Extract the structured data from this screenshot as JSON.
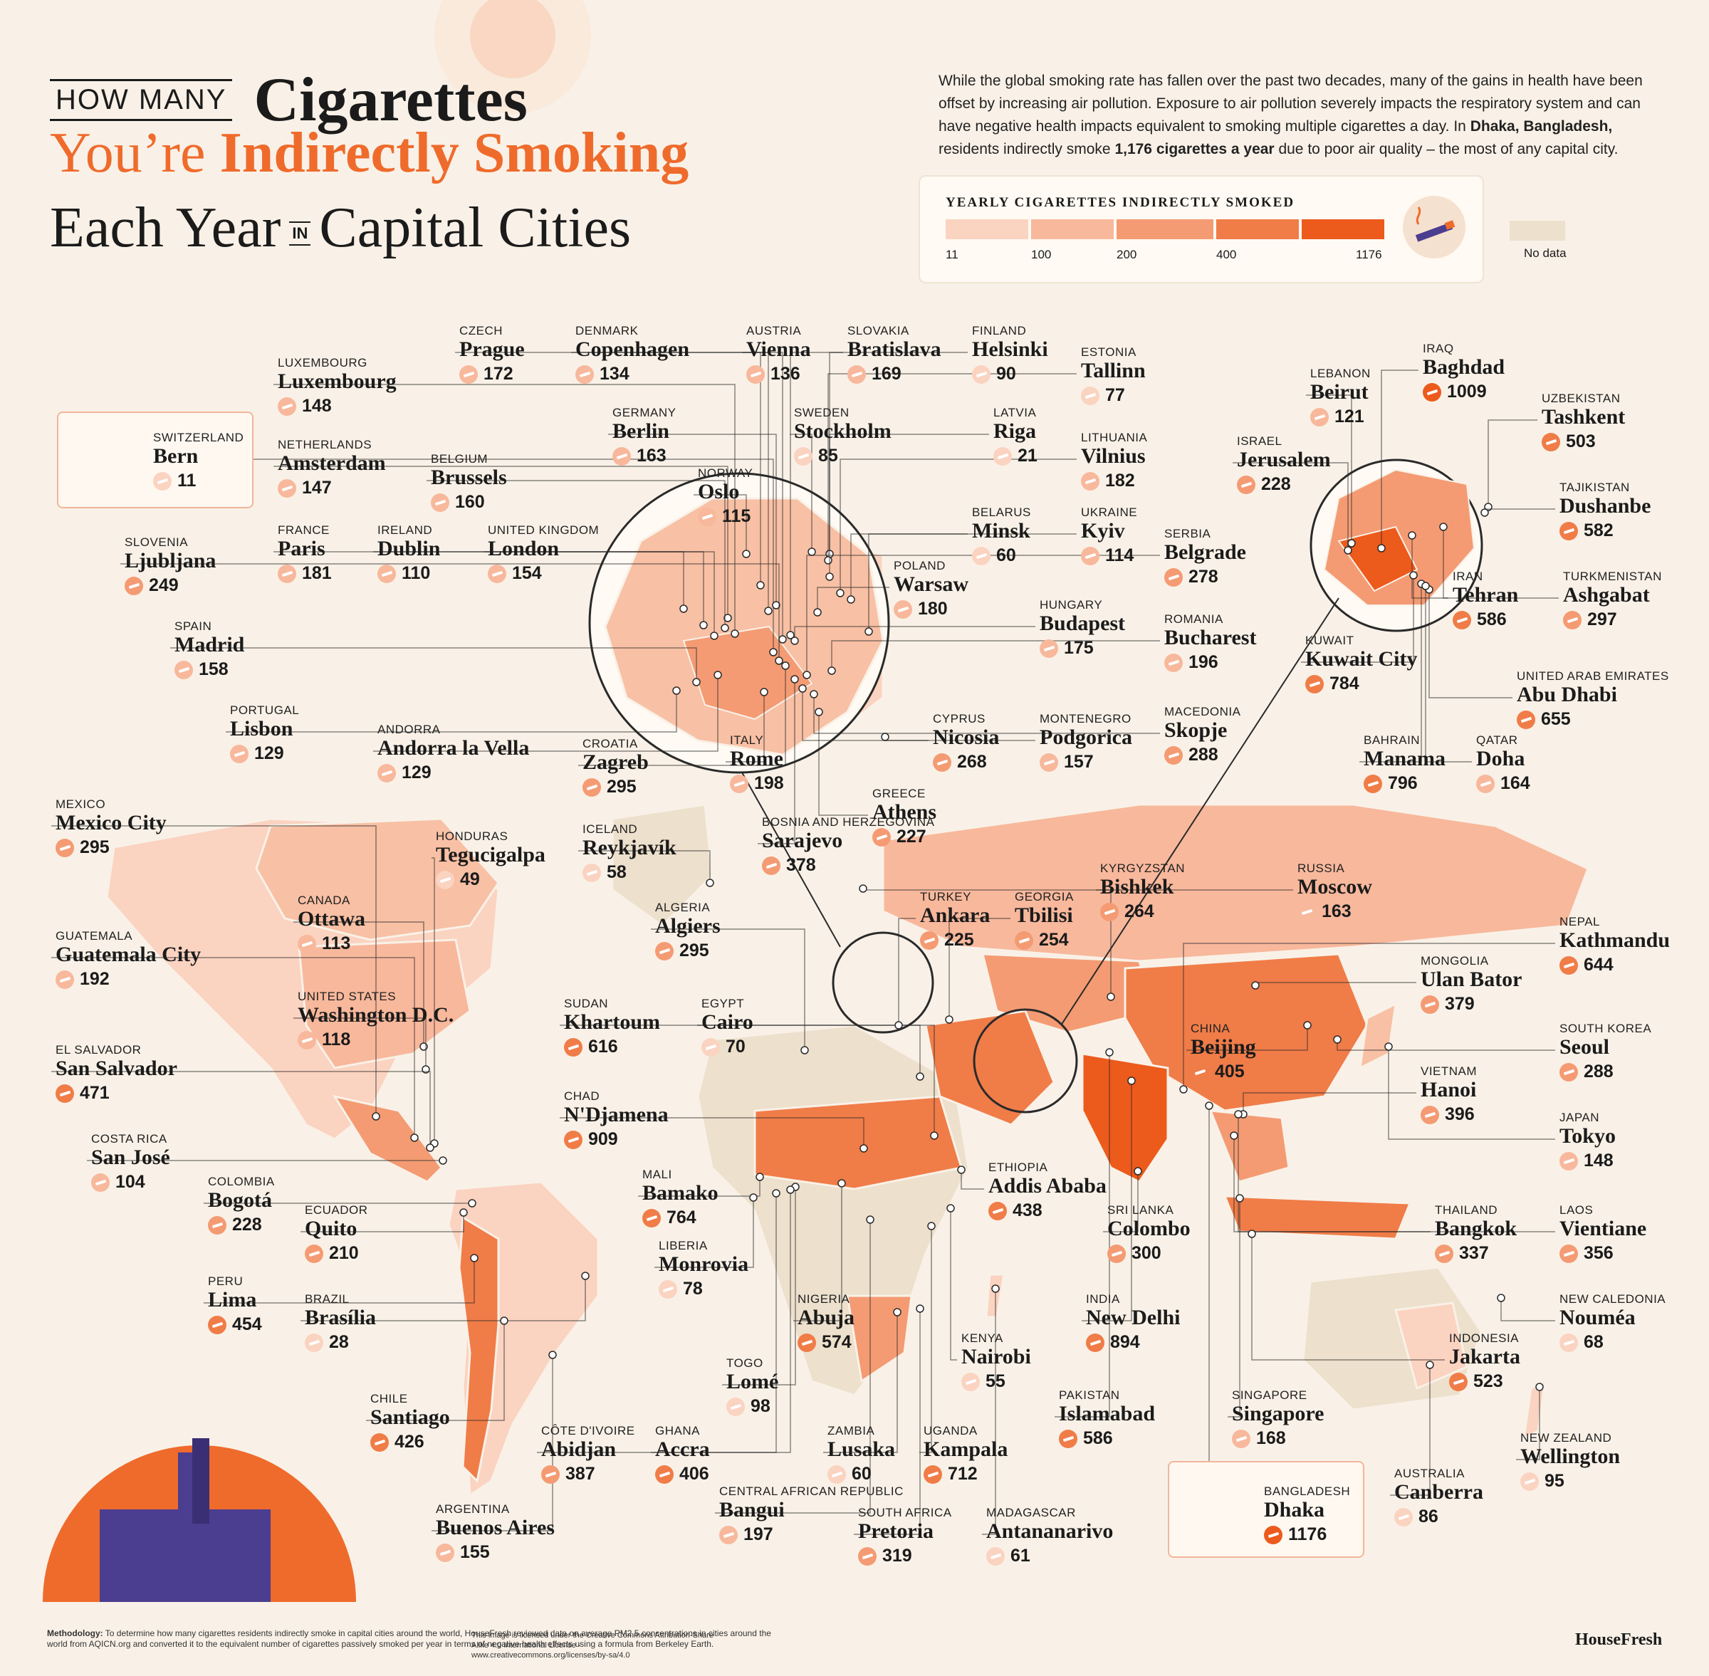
{
  "title": {
    "line1_small": "HOW MANY",
    "line1_big": "Cigarettes",
    "line2_a": "You’re ",
    "line2_b": "Indirectly Smoking",
    "line3_a": "Each Year",
    "line3_in": "IN",
    "line3_b": "Capital Cities"
  },
  "intro": {
    "p1": "While the global smoking rate has fallen over the past two decades, many of the gains in health have been offset by increasing air pollution. Exposure to air pollution severely impacts the respiratory system and can have negative health impacts equivalent to smoking multiple cigarettes a day. In ",
    "city": "Dhaka, Bangladesh,",
    "p2": " residents indirectly smoke ",
    "num": "1,176 cigarettes a year",
    "p3": " due to poor air quality – the most of any capital city."
  },
  "legend": {
    "title": "YEARLY CIGARETTES INDIRECTLY SMOKED",
    "ticks": [
      "11",
      "100",
      "200",
      "400",
      "1176"
    ],
    "colors": [
      "#fbd3c1",
      "#f8b89c",
      "#f49b73",
      "#f07c48",
      "#ec5a1c"
    ],
    "nodata_label": "No data",
    "nodata_color": "#ede0cc",
    "icon": "cigarette-icon"
  },
  "colors": {
    "background": "#f9f1e7",
    "accent": "#ef6b2c",
    "leader": "#2a2a2a",
    "land_nodata": "#ede0cc"
  },
  "cities": [
    {
      "id": "bern",
      "country": "SWITZERLAND",
      "name": "Bern",
      "value": "11",
      "v": 11
    },
    {
      "id": "luxembourg",
      "country": "LUXEMBOURG",
      "name": "Luxembourg",
      "value": "148",
      "v": 148
    },
    {
      "id": "prague",
      "country": "CZECH",
      "name": "Prague",
      "value": "172",
      "v": 172
    },
    {
      "id": "copenhagen",
      "country": "DENMARK",
      "name": "Copenhagen",
      "value": "134",
      "v": 134
    },
    {
      "id": "vienna",
      "country": "AUSTRIA",
      "name": "Vienna",
      "value": "136",
      "v": 136
    },
    {
      "id": "bratislava",
      "country": "SLOVAKIA",
      "name": "Bratislava",
      "value": "169",
      "v": 169
    },
    {
      "id": "helsinki",
      "country": "FINLAND",
      "name": "Helsinki",
      "value": "90",
      "v": 90
    },
    {
      "id": "tallinn",
      "country": "ESTONIA",
      "name": "Tallinn",
      "value": "77",
      "v": 77
    },
    {
      "id": "riga",
      "country": "LATVIA",
      "name": "Riga",
      "value": "21",
      "v": 21
    },
    {
      "id": "vilnius",
      "country": "LITHUANIA",
      "name": "Vilnius",
      "value": "182",
      "v": 182
    },
    {
      "id": "minsk",
      "country": "BELARUS",
      "name": "Minsk",
      "value": "60",
      "v": 60
    },
    {
      "id": "kyiv",
      "country": "UKRAINE",
      "name": "Kyiv",
      "value": "114",
      "v": 114
    },
    {
      "id": "warsaw",
      "country": "POLAND",
      "name": "Warsaw",
      "value": "180",
      "v": 180
    },
    {
      "id": "budapest",
      "country": "HUNGARY",
      "name": "Budapest",
      "value": "175",
      "v": 175
    },
    {
      "id": "amsterdam",
      "country": "NETHERLANDS",
      "name": "Amsterdam",
      "value": "147",
      "v": 147
    },
    {
      "id": "brussels",
      "country": "BELGIUM",
      "name": "Brussels",
      "value": "160",
      "v": 160
    },
    {
      "id": "berlin",
      "country": "GERMANY",
      "name": "Berlin",
      "value": "163",
      "v": 163
    },
    {
      "id": "stockholm",
      "country": "SWEDEN",
      "name": "Stockholm",
      "value": "85",
      "v": 85
    },
    {
      "id": "oslo",
      "country": "NORWAY",
      "name": "Oslo",
      "value": "115",
      "v": 115
    },
    {
      "id": "paris",
      "country": "FRANCE",
      "name": "Paris",
      "value": "181",
      "v": 181
    },
    {
      "id": "dublin",
      "country": "IRELAND",
      "name": "Dublin",
      "value": "110",
      "v": 110
    },
    {
      "id": "london",
      "country": "UNITED KINGDOM",
      "name": "London",
      "value": "154",
      "v": 154
    },
    {
      "id": "ljubljana",
      "country": "SLOVENIA",
      "name": "Ljubljana",
      "value": "249",
      "v": 249
    },
    {
      "id": "madrid",
      "country": "SPAIN",
      "name": "Madrid",
      "value": "158",
      "v": 158
    },
    {
      "id": "lisbon",
      "country": "PORTUGAL",
      "name": "Lisbon",
      "value": "129",
      "v": 129
    },
    {
      "id": "andorra",
      "country": "ANDORRA",
      "name": "Andorra la Vella",
      "value": "129",
      "v": 129
    },
    {
      "id": "zagreb",
      "country": "CROATIA",
      "name": "Zagreb",
      "value": "295",
      "v": 295
    },
    {
      "id": "rome",
      "country": "ITALY",
      "name": "Rome",
      "value": "198",
      "v": 198
    },
    {
      "id": "sarajevo",
      "country": "BOSNIA AND HERZEGOVINA",
      "name": "Sarajevo",
      "value": "378",
      "v": 378
    },
    {
      "id": "athens",
      "country": "GREECE",
      "name": "Athens",
      "value": "227",
      "v": 227
    },
    {
      "id": "nicosia",
      "country": "CYPRUS",
      "name": "Nicosia",
      "value": "268",
      "v": 268
    },
    {
      "id": "podgorica",
      "country": "MONTENEGRO",
      "name": "Podgorica",
      "value": "157",
      "v": 157
    },
    {
      "id": "skopje",
      "country": "MACEDONIA",
      "name": "Skopje",
      "value": "288",
      "v": 288
    },
    {
      "id": "belgrade",
      "country": "SERBIA",
      "name": "Belgrade",
      "value": "278",
      "v": 278
    },
    {
      "id": "bucharest",
      "country": "ROMANIA",
      "name": "Bucharest",
      "value": "196",
      "v": 196
    },
    {
      "id": "reykjavik",
      "country": "ICELAND",
      "name": "Reykjavík",
      "value": "58",
      "v": 58
    },
    {
      "id": "mexico",
      "country": "MEXICO",
      "name": "Mexico City",
      "value": "295",
      "v": 295
    },
    {
      "id": "tegucigalpa",
      "country": "HONDURAS",
      "name": "Tegucigalpa",
      "value": "49",
      "v": 49
    },
    {
      "id": "ottawa",
      "country": "CANADA",
      "name": "Ottawa",
      "value": "113",
      "v": 113
    },
    {
      "id": "guatemala",
      "country": "GUATEMALA",
      "name": "Guatemala City",
      "value": "192",
      "v": 192
    },
    {
      "id": "washington",
      "country": "UNITED STATES",
      "name": "Washington D.C.",
      "value": "118",
      "v": 118
    },
    {
      "id": "sansalvador",
      "country": "EL SALVADOR",
      "name": "San Salvador",
      "value": "471",
      "v": 471
    },
    {
      "id": "sanjose",
      "country": "COSTA RICA",
      "name": "San José",
      "value": "104",
      "v": 104
    },
    {
      "id": "bogota",
      "country": "COLOMBIA",
      "name": "Bogotá",
      "value": "228",
      "v": 228
    },
    {
      "id": "quito",
      "country": "ECUADOR",
      "name": "Quito",
      "value": "210",
      "v": 210
    },
    {
      "id": "lima",
      "country": "PERU",
      "name": "Lima",
      "value": "454",
      "v": 454
    },
    {
      "id": "brasilia",
      "country": "BRAZIL",
      "name": "Brasília",
      "value": "28",
      "v": 28
    },
    {
      "id": "santiago",
      "country": "CHILE",
      "name": "Santiago",
      "value": "426",
      "v": 426
    },
    {
      "id": "buenosaires",
      "country": "ARGENTINA",
      "name": "Buenos Aires",
      "value": "155",
      "v": 155
    },
    {
      "id": "algiers",
      "country": "ALGERIA",
      "name": "Algiers",
      "value": "295",
      "v": 295
    },
    {
      "id": "khartoum",
      "country": "SUDAN",
      "name": "Khartoum",
      "value": "616",
      "v": 616
    },
    {
      "id": "cairo",
      "country": "EGYPT",
      "name": "Cairo",
      "value": "70",
      "v": 70
    },
    {
      "id": "ndjamena",
      "country": "CHAD",
      "name": "N'Djamena",
      "value": "909",
      "v": 909
    },
    {
      "id": "bamako",
      "country": "MALI",
      "name": "Bamako",
      "value": "764",
      "v": 764
    },
    {
      "id": "monrovia",
      "country": "LIBERIA",
      "name": "Monrovia",
      "value": "78",
      "v": 78
    },
    {
      "id": "abuja",
      "country": "NIGERIA",
      "name": "Abuja",
      "value": "574",
      "v": 574
    },
    {
      "id": "lome",
      "country": "TOGO",
      "name": "Lomé",
      "value": "98",
      "v": 98
    },
    {
      "id": "abidjan",
      "country": "CÔTE D'IVOIRE",
      "name": "Abidjan",
      "value": "387",
      "v": 387
    },
    {
      "id": "accra",
      "country": "GHANA",
      "name": "Accra",
      "value": "406",
      "v": 406
    },
    {
      "id": "bangui",
      "country": "CENTRAL AFRICAN REPUBLIC",
      "name": "Bangui",
      "value": "197",
      "v": 197
    },
    {
      "id": "lusaka",
      "country": "ZAMBIA",
      "name": "Lusaka",
      "value": "60",
      "v": 60
    },
    {
      "id": "pretoria",
      "country": "SOUTH AFRICA",
      "name": "Pretoria",
      "value": "319",
      "v": 319
    },
    {
      "id": "kampala",
      "country": "UGANDA",
      "name": "Kampala",
      "value": "712",
      "v": 712
    },
    {
      "id": "nairobi",
      "country": "KENYA",
      "name": "Nairobi",
      "value": "55",
      "v": 55
    },
    {
      "id": "addis",
      "country": "ETHIOPIA",
      "name": "Addis Ababa",
      "value": "438",
      "v": 438
    },
    {
      "id": "antananarivo",
      "country": "MADAGASCAR",
      "name": "Antananarivo",
      "value": "61",
      "v": 61
    },
    {
      "id": "ankara",
      "country": "TURKEY",
      "name": "Ankara",
      "value": "225",
      "v": 225
    },
    {
      "id": "tbilisi",
      "country": "GEORGIA",
      "name": "Tbilisi",
      "value": "254",
      "v": 254
    },
    {
      "id": "bishkek",
      "country": "KYRGYZSTAN",
      "name": "Bishkek",
      "value": "264",
      "v": 264
    },
    {
      "id": "moscow",
      "country": "RUSSIA",
      "name": "Moscow",
      "value": "163",
      "v": 163
    },
    {
      "id": "kathmandu",
      "country": "NEPAL",
      "name": "Kathmandu",
      "value": "644",
      "v": 644
    },
    {
      "id": "ulanbator",
      "country": "MONGOLIA",
      "name": "Ulan Bator",
      "value": "379",
      "v": 379
    },
    {
      "id": "beijing",
      "country": "CHINA",
      "name": "Beijing",
      "value": "405",
      "v": 405
    },
    {
      "id": "seoul",
      "country": "SOUTH KOREA",
      "name": "Seoul",
      "value": "288",
      "v": 288
    },
    {
      "id": "hanoi",
      "country": "VIETNAM",
      "name": "Hanoi",
      "value": "396",
      "v": 396
    },
    {
      "id": "tokyo",
      "country": "JAPAN",
      "name": "Tokyo",
      "value": "148",
      "v": 148
    },
    {
      "id": "colombo",
      "country": "SRI LANKA",
      "name": "Colombo",
      "value": "300",
      "v": 300
    },
    {
      "id": "bangkok",
      "country": "THAILAND",
      "name": "Bangkok",
      "value": "337",
      "v": 337
    },
    {
      "id": "vientiane",
      "country": "LAOS",
      "name": "Vientiane",
      "value": "356",
      "v": 356
    },
    {
      "id": "newdelhi",
      "country": "INDIA",
      "name": "New Delhi",
      "value": "894",
      "v": 894
    },
    {
      "id": "noumea",
      "country": "NEW CALEDONIA",
      "name": "Nouméa",
      "value": "68",
      "v": 68
    },
    {
      "id": "jakarta",
      "country": "INDONESIA",
      "name": "Jakarta",
      "value": "523",
      "v": 523
    },
    {
      "id": "islamabad",
      "country": "PAKISTAN",
      "name": "Islamabad",
      "value": "586",
      "v": 586
    },
    {
      "id": "singapore",
      "country": "SINGAPORE",
      "name": "Singapore",
      "value": "168",
      "v": 168
    },
    {
      "id": "canberra",
      "country": "AUSTRALIA",
      "name": "Canberra",
      "value": "86",
      "v": 86
    },
    {
      "id": "wellington",
      "country": "NEW ZEALAND",
      "name": "Wellington",
      "value": "95",
      "v": 95
    },
    {
      "id": "dhaka",
      "country": "BANGLADESH",
      "name": "Dhaka",
      "value": "1176",
      "v": 1176
    },
    {
      "id": "beirut",
      "country": "LEBANON",
      "name": "Beirut",
      "value": "121",
      "v": 121
    },
    {
      "id": "baghdad",
      "country": "IRAQ",
      "name": "Baghdad",
      "value": "1009",
      "v": 1009
    },
    {
      "id": "tashkent",
      "country": "UZBEKISTAN",
      "name": "Tashkent",
      "value": "503",
      "v": 503
    },
    {
      "id": "jerusalem",
      "country": "ISRAEL",
      "name": "Jerusalem",
      "value": "228",
      "v": 228
    },
    {
      "id": "dushanbe",
      "country": "TAJIKISTAN",
      "name": "Dushanbe",
      "value": "582",
      "v": 582
    },
    {
      "id": "tehran",
      "country": "IRAN",
      "name": "Tehran",
      "value": "586",
      "v": 586
    },
    {
      "id": "ashgabat",
      "country": "TURKMENISTAN",
      "name": "Ashgabat",
      "value": "297",
      "v": 297
    },
    {
      "id": "kuwait",
      "country": "KUWAIT",
      "name": "Kuwait City",
      "value": "784",
      "v": 784
    },
    {
      "id": "abudhabi",
      "country": "UNITED ARAB EMIRATES",
      "name": "Abu Dhabi",
      "value": "655",
      "v": 655
    },
    {
      "id": "manama",
      "country": "BAHRAIN",
      "name": "Manama",
      "value": "796",
      "v": 796
    },
    {
      "id": "doha",
      "country": "QATAR",
      "name": "Doha",
      "value": "164",
      "v": 164
    }
  ],
  "footer": {
    "method_label": "Methodology:",
    "method_text": " To determine how many cigarettes residents indirectly smoke in capital cities around the world, HouseFresh reviewed data on average PM2.5 concentrations in cities around the world from AQICN.org and converted it to the equivalent number of cigarettes passively smoked per year in terms of negative health effects using a formula from Berkeley Earth.",
    "license": "This image is licensed under the Creative Commons Attribution-Share Alike 4.0 International License - www.creativecommons.org/licenses/by-sa/4.0",
    "brand": "HouseFresh"
  }
}
